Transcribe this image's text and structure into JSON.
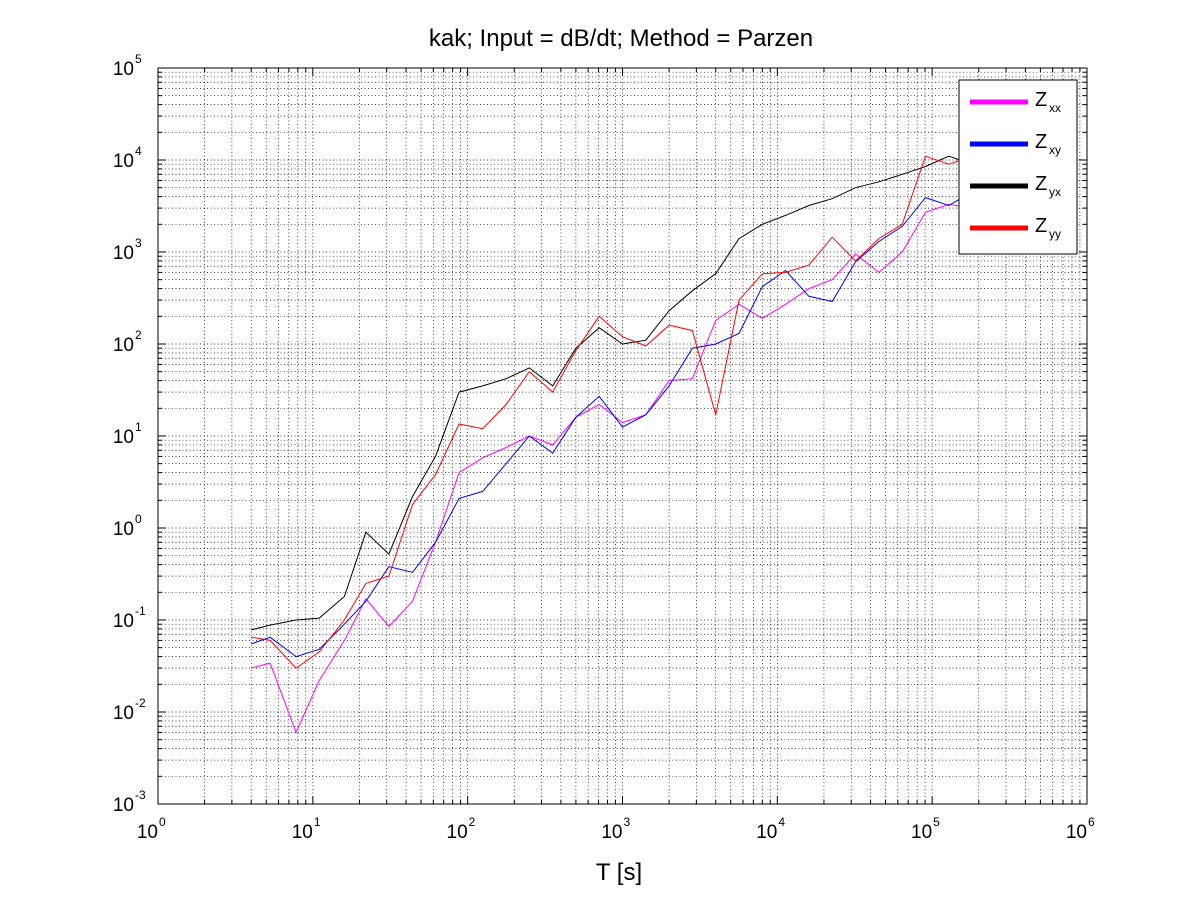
{
  "chart_data": {
    "type": "line",
    "title": "kak; Input = dB/dt; Method = Parzen",
    "xlabel": "T [s]",
    "ylabel": "",
    "xscale": "log",
    "yscale": "log",
    "xlim": [
      1,
      1000000
    ],
    "ylim": [
      0.001,
      100000
    ],
    "grid": true,
    "legend_position": "top-right",
    "x_ticks": [
      {
        "base": "10",
        "exp": "0"
      },
      {
        "base": "10",
        "exp": "1"
      },
      {
        "base": "10",
        "exp": "2"
      },
      {
        "base": "10",
        "exp": "3"
      },
      {
        "base": "10",
        "exp": "4"
      },
      {
        "base": "10",
        "exp": "5"
      },
      {
        "base": "10",
        "exp": "6"
      }
    ],
    "y_ticks": [
      {
        "base": "10",
        "exp": "-3"
      },
      {
        "base": "10",
        "exp": "-2"
      },
      {
        "base": "10",
        "exp": "-1"
      },
      {
        "base": "10",
        "exp": "0"
      },
      {
        "base": "10",
        "exp": "1"
      },
      {
        "base": "10",
        "exp": "2"
      },
      {
        "base": "10",
        "exp": "3"
      },
      {
        "base": "10",
        "exp": "4"
      },
      {
        "base": "10",
        "exp": "5"
      }
    ],
    "x": [
      4,
      5.3,
      7.8,
      11,
      16,
      22,
      31,
      44,
      62,
      88,
      125,
      177,
      250,
      354,
      500,
      707,
      1000,
      1414,
      2000,
      2828,
      4000,
      5657,
      8000,
      11314,
      16000,
      22627,
      32000,
      45255,
      64000,
      90510,
      128000,
      181019,
      215000
    ],
    "series": [
      {
        "name": "Z",
        "sub": "xx",
        "color": "#ff00ff",
        "values": [
          0.03,
          0.034,
          0.006,
          0.022,
          0.06,
          0.17,
          0.085,
          0.16,
          0.7,
          4.0,
          5.8,
          7.5,
          10,
          8,
          16,
          22,
          14,
          17,
          40,
          42,
          180,
          270,
          190,
          270,
          400,
          500,
          950,
          600,
          1000,
          2700,
          3300,
          3000,
          2800
        ]
      },
      {
        "name": "Z",
        "sub": "xy",
        "color": "#0000ff",
        "values": [
          0.055,
          0.065,
          0.04,
          0.048,
          0.09,
          0.16,
          0.38,
          0.33,
          0.7,
          2.1,
          2.5,
          5.0,
          10,
          6.5,
          16,
          27,
          12.5,
          17,
          35,
          90,
          100,
          130,
          420,
          630,
          330,
          290,
          780,
          1300,
          1900,
          3900,
          3200,
          4500,
          2000
        ]
      },
      {
        "name": "Z",
        "sub": "yx",
        "color": "#000000",
        "values": [
          0.078,
          0.088,
          0.1,
          0.105,
          0.18,
          0.9,
          0.52,
          2.2,
          6.0,
          30,
          35,
          42,
          55,
          35,
          90,
          150,
          100,
          110,
          230,
          380,
          580,
          1400,
          2000,
          2500,
          3200,
          3800,
          5000,
          5800,
          7000,
          8500,
          11000,
          9000,
          11000
        ]
      },
      {
        "name": "Z",
        "sub": "yy",
        "color": "#ff0000",
        "values": [
          0.065,
          0.06,
          0.03,
          0.045,
          0.1,
          0.25,
          0.3,
          1.8,
          3.8,
          13.5,
          12,
          22,
          50,
          30,
          85,
          200,
          120,
          95,
          160,
          140,
          17,
          300,
          580,
          600,
          720,
          1450,
          800,
          1400,
          2000,
          11000,
          9000,
          11000,
          15000
        ]
      }
    ]
  }
}
